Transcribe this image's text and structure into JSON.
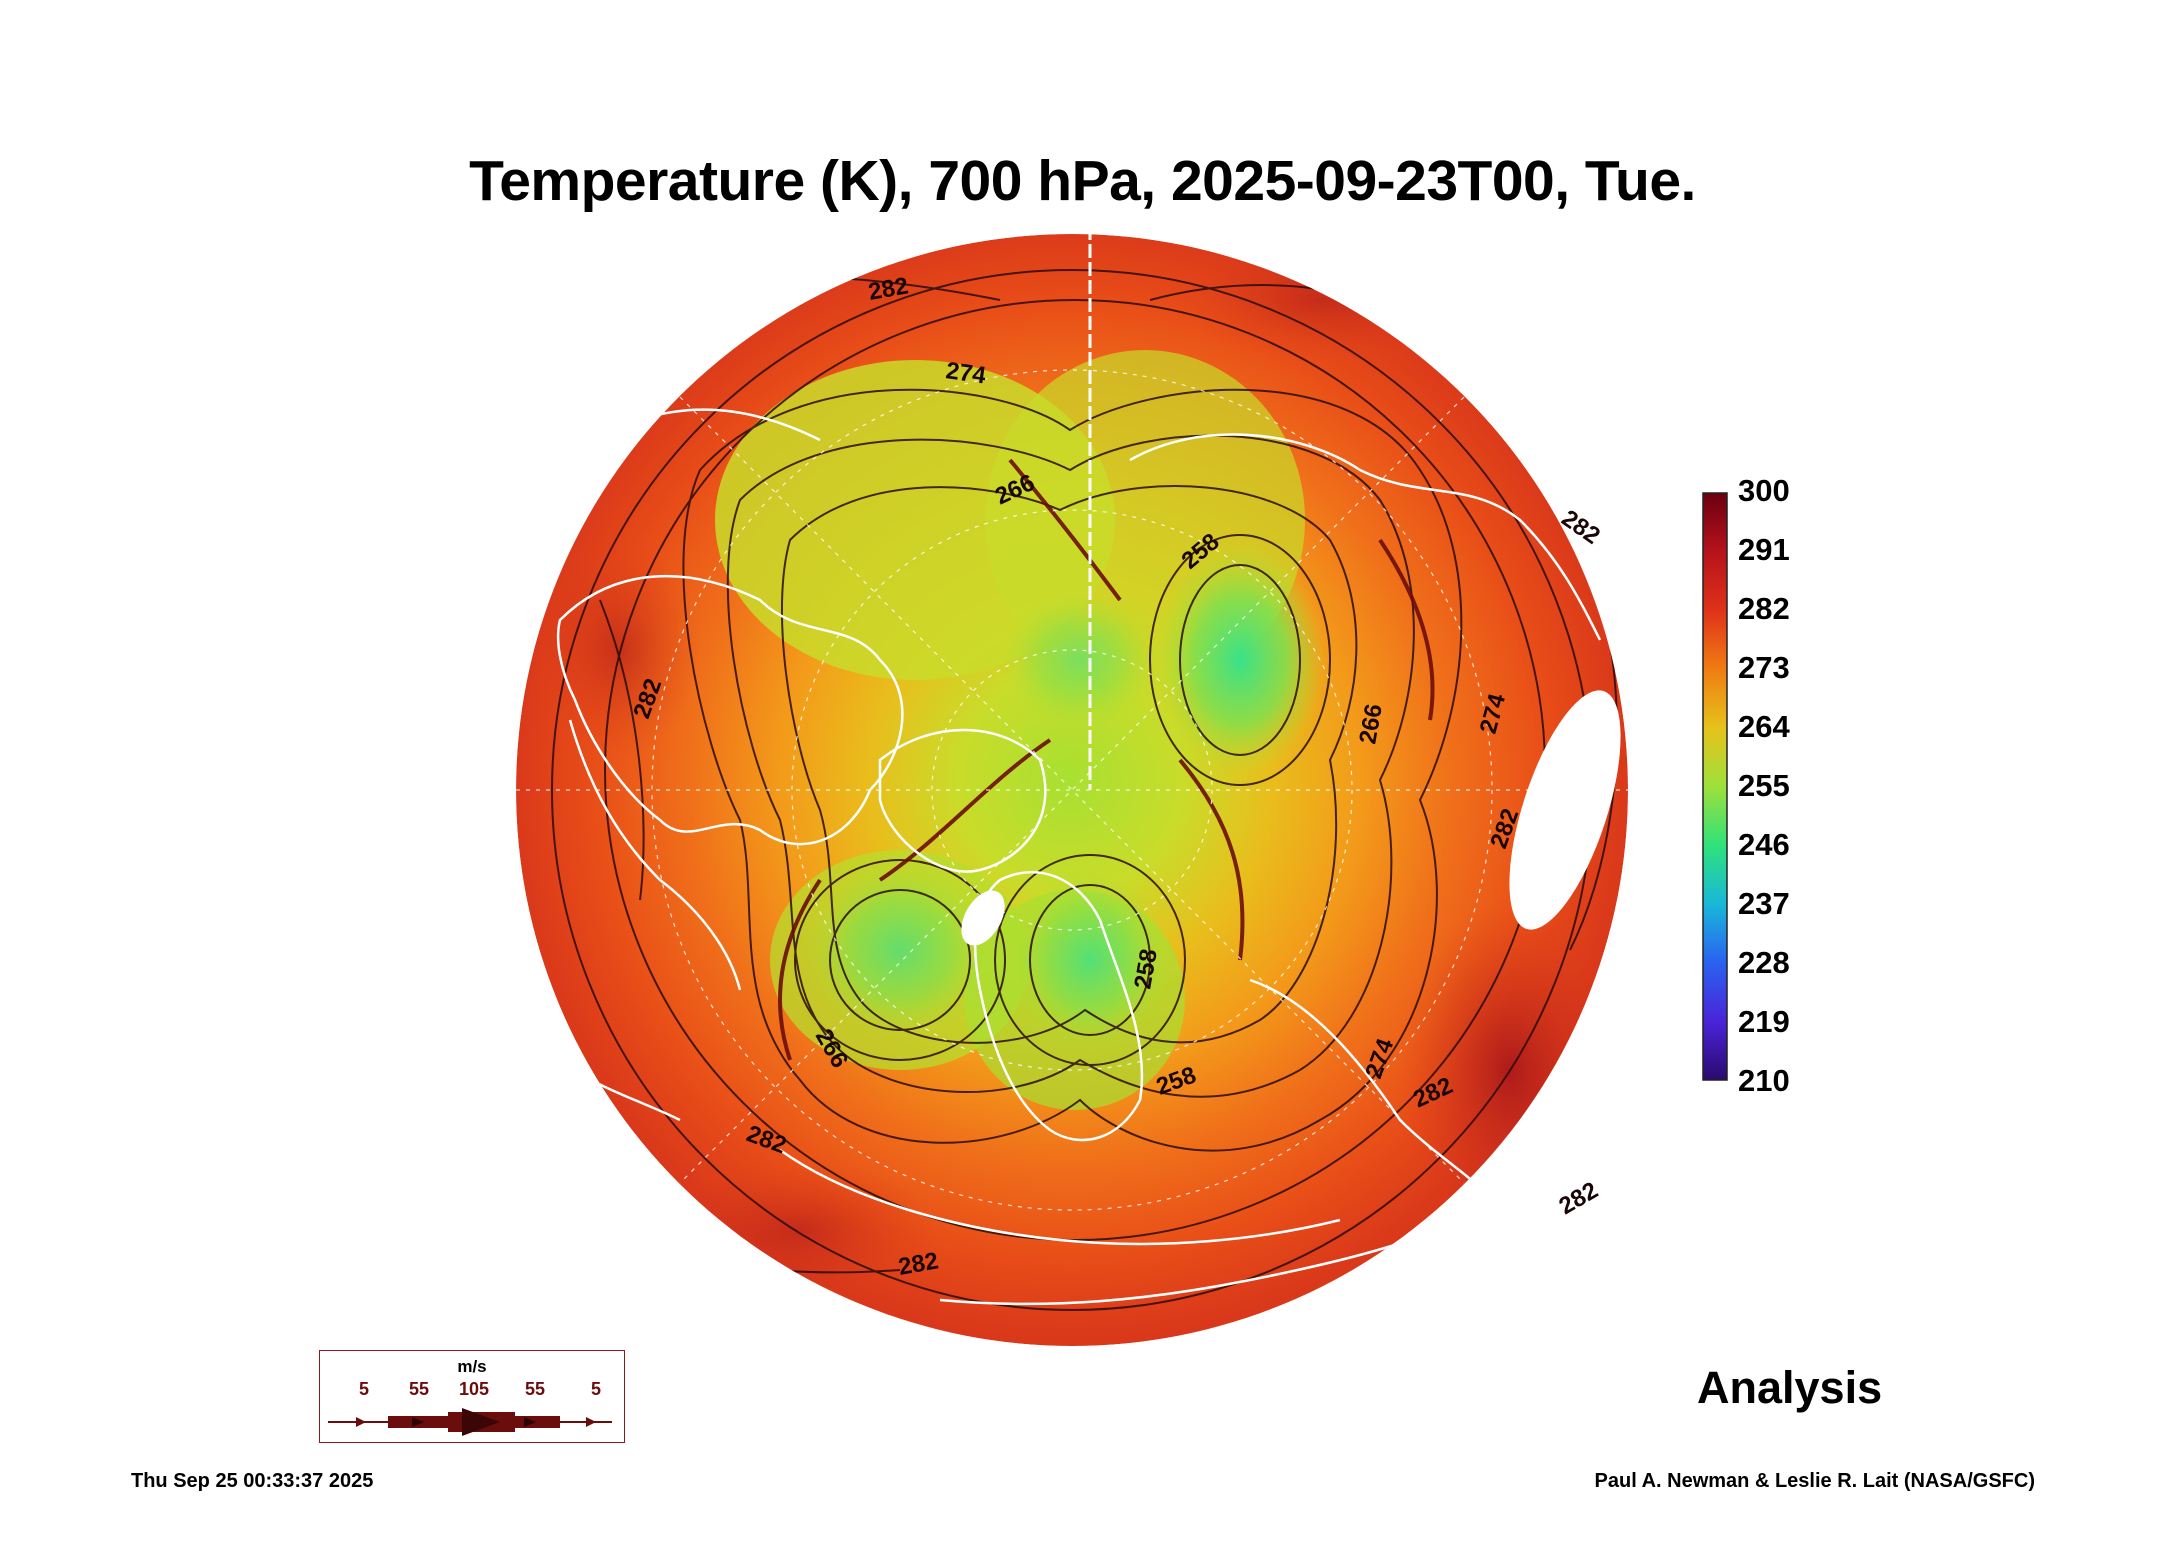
{
  "title": "Temperature (K), 700 hPa, 2025-09-23T00, Tue.",
  "colorbar": {
    "labels": [
      "300",
      "291",
      "282",
      "273",
      "264",
      "255",
      "246",
      "237",
      "228",
      "219",
      "210"
    ],
    "colors": [
      "#6b0010",
      "#b5121b",
      "#e0321a",
      "#f07c12",
      "#e6c21a",
      "#9ee03a",
      "#2fe27a",
      "#18b8d8",
      "#2a62f0",
      "#4a24d8",
      "#2a0a6e"
    ]
  },
  "contour_labels": [
    "274",
    "266",
    "282",
    "282",
    "282",
    "282",
    "282",
    "282",
    "282",
    "266",
    "274",
    "258",
    "258",
    "258",
    "266",
    "274",
    "282"
  ],
  "legend": {
    "unit": "m/s",
    "speeds": [
      "5",
      "55",
      "105",
      "55",
      "5"
    ]
  },
  "analysis_label": "Analysis",
  "timestamp": "Thu Sep 25 00:33:37 2025",
  "credit": "Paul A. Newman & Leslie R. Lait (NASA/GSFC)"
}
